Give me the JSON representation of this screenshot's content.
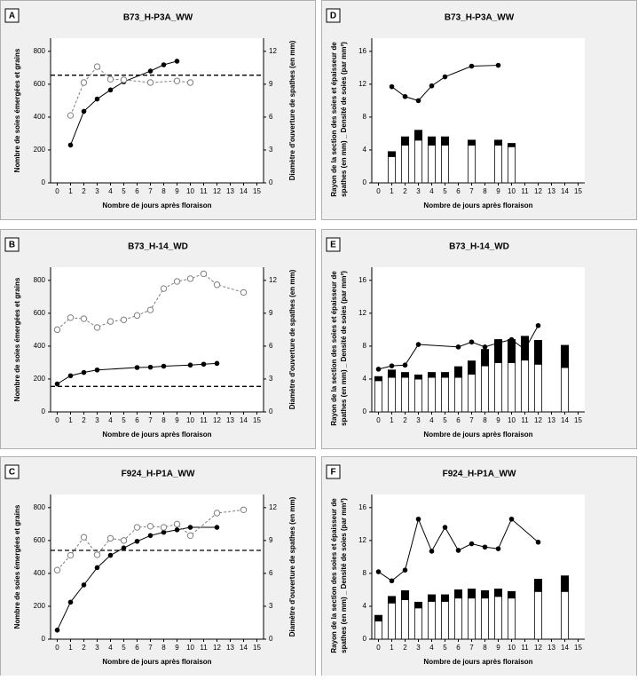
{
  "chart_data": [
    {
      "type": "line",
      "panel": "A",
      "title": "B73_H-P3A_WW",
      "xlabel": "Nombre de jours après floraison",
      "ylabel": "Nombre de soies émergées et grains",
      "y2label": "Diamètre d'ouverture de spathes (en mm)",
      "xlim": [
        -0.5,
        15.5
      ],
      "xticks": [
        0,
        1,
        2,
        3,
        4,
        5,
        6,
        7,
        8,
        9,
        10,
        11,
        12,
        13,
        14,
        15
      ],
      "ylim": [
        0,
        880
      ],
      "yticks": [
        0,
        200,
        400,
        600,
        800
      ],
      "y2lim": [
        0,
        13.2
      ],
      "y2ticks": [
        0,
        3,
        6,
        9,
        12
      ],
      "hline": 655,
      "series": [
        {
          "color": "#000000",
          "style": "solid",
          "marker": "filled",
          "x": [
            1,
            2,
            3,
            4,
            5,
            7,
            8,
            9
          ],
          "values": [
            230,
            435,
            510,
            565,
            615,
            680,
            718,
            740
          ]
        },
        {
          "color": "#808080",
          "style": "dashed",
          "marker": "open",
          "axis": "y2",
          "x": [
            1,
            2,
            3,
            4,
            5,
            7,
            9,
            10
          ],
          "values": [
            6.15,
            9.15,
            10.6,
            9.45,
            9.4,
            9.15,
            9.3,
            9.15
          ]
        }
      ]
    },
    {
      "type": "bar",
      "panel": "D",
      "title": "B73_H-P3A_WW",
      "xlabel": "Nombre de jours après floraison",
      "ylabel": [
        "Rayon de la section des soies et épaisseur de",
        "spathes (en mm) _ Densité de soies (par mm²)"
      ],
      "xlim": [
        -0.5,
        15.5
      ],
      "xticks": [
        0,
        1,
        2,
        3,
        4,
        5,
        6,
        7,
        8,
        9,
        10,
        11,
        12,
        13,
        14,
        15
      ],
      "ylim": [
        0,
        17.6
      ],
      "yticks": [
        0,
        4,
        8,
        12,
        16
      ],
      "series": [
        {
          "type": "bar",
          "color": "#ffffff",
          "x": [
            1,
            2,
            3,
            4,
            5,
            7,
            9,
            10
          ],
          "values": [
            3.2,
            4.6,
            5.2,
            4.6,
            4.6,
            4.6,
            4.6,
            4.4
          ]
        },
        {
          "type": "bar",
          "color": "#000000",
          "x": [
            1,
            2,
            3,
            4,
            5,
            7,
            9,
            10
          ],
          "values": [
            0.6,
            1.0,
            1.2,
            1.0,
            1.0,
            0.6,
            0.6,
            0.4
          ]
        },
        {
          "type": "line",
          "color": "#000000",
          "x": [
            1,
            2,
            3,
            4,
            5,
            7,
            9
          ],
          "values": [
            11.7,
            10.5,
            10.0,
            11.8,
            12.9,
            14.2,
            14.3
          ]
        }
      ]
    },
    {
      "type": "line",
      "panel": "B",
      "title": "B73_H-14_WD",
      "xlabel": "Nombre de jours après floraison",
      "ylabel": "Nombre de soies émergées et grains",
      "y2label": "Diamètre d'ouverture de spathes (en mm)",
      "xlim": [
        -0.5,
        15.5
      ],
      "xticks": [
        0,
        1,
        2,
        3,
        4,
        5,
        6,
        7,
        8,
        9,
        10,
        11,
        12,
        13,
        14,
        15
      ],
      "ylim": [
        0,
        880
      ],
      "yticks": [
        0,
        200,
        400,
        600,
        800
      ],
      "y2lim": [
        0,
        13.2
      ],
      "y2ticks": [
        0,
        3,
        6,
        9,
        12
      ],
      "hline": 155,
      "series": [
        {
          "color": "#000000",
          "style": "solid",
          "marker": "filled",
          "x": [
            0,
            1,
            2,
            3,
            6,
            7,
            8,
            10,
            11,
            12
          ],
          "values": [
            170,
            220,
            240,
            255,
            270,
            272,
            278,
            285,
            290,
            295
          ]
        },
        {
          "color": "#808080",
          "style": "dashed",
          "marker": "open",
          "axis": "y2",
          "x": [
            0,
            1,
            2,
            3,
            4,
            5,
            6,
            7,
            8,
            9,
            10,
            11,
            12,
            14
          ],
          "values": [
            7.5,
            8.6,
            8.5,
            7.7,
            8.25,
            8.4,
            8.8,
            9.3,
            11.25,
            11.9,
            12.15,
            12.6,
            11.6,
            10.9
          ]
        }
      ]
    },
    {
      "type": "bar",
      "panel": "E",
      "title": "B73_H-14_WD",
      "xlabel": "Nombre de jours après floraison",
      "ylabel": [
        "Rayon de la section des soies et épaisseur de",
        "spathes (en mm) _ Densité de soies (par mm²)"
      ],
      "xlim": [
        -0.5,
        15.5
      ],
      "xticks": [
        0,
        1,
        2,
        3,
        4,
        5,
        6,
        7,
        8,
        9,
        10,
        11,
        12,
        13,
        14,
        15
      ],
      "ylim": [
        0,
        17.6
      ],
      "yticks": [
        0,
        4,
        8,
        12,
        16
      ],
      "series": [
        {
          "type": "bar",
          "color": "#ffffff",
          "x": [
            0,
            1,
            2,
            3,
            4,
            5,
            6,
            7,
            8,
            9,
            10,
            11,
            12,
            14
          ],
          "values": [
            3.8,
            4.2,
            4.2,
            4.0,
            4.2,
            4.2,
            4.2,
            4.6,
            5.6,
            6.0,
            6.0,
            6.3,
            5.8,
            5.4
          ]
        },
        {
          "type": "bar",
          "color": "#000000",
          "x": [
            0,
            1,
            2,
            3,
            4,
            5,
            6,
            7,
            8,
            9,
            10,
            11,
            12,
            14
          ],
          "values": [
            0.5,
            0.9,
            0.6,
            0.5,
            0.6,
            0.6,
            1.3,
            1.6,
            2.0,
            2.8,
            2.8,
            2.9,
            2.9,
            2.7
          ]
        },
        {
          "type": "line",
          "color": "#000000",
          "x": [
            0,
            1,
            2,
            3,
            6,
            7,
            8,
            9,
            10,
            11,
            12
          ],
          "values": [
            5.2,
            5.6,
            5.7,
            8.2,
            7.9,
            8.5,
            7.9,
            8.4,
            8.8,
            7.6,
            10.5
          ]
        }
      ]
    },
    {
      "type": "line",
      "panel": "C",
      "title": "F924_H-P1A_WW",
      "xlabel": "Nombre de jours après floraison",
      "ylabel": "Nombre de soies émergées et grains",
      "y2label": "Diamètre d'ouverture de spathes (en mm)",
      "xlim": [
        -0.5,
        15.5
      ],
      "xticks": [
        0,
        1,
        2,
        3,
        4,
        5,
        6,
        7,
        8,
        9,
        10,
        11,
        12,
        13,
        14,
        15
      ],
      "ylim": [
        0,
        880
      ],
      "yticks": [
        0,
        200,
        400,
        600,
        800
      ],
      "y2lim": [
        0,
        13.2
      ],
      "y2ticks": [
        0,
        3,
        6,
        9,
        12
      ],
      "hline": 540,
      "series": [
        {
          "color": "#000000",
          "style": "solid",
          "marker": "filled",
          "x": [
            0,
            1,
            2,
            3,
            4,
            5,
            6,
            7,
            8,
            9,
            10,
            12
          ],
          "values": [
            55,
            225,
            330,
            435,
            510,
            555,
            595,
            630,
            650,
            665,
            680,
            680
          ]
        },
        {
          "color": "#808080",
          "style": "dashed",
          "marker": "open",
          "axis": "y2",
          "x": [
            0,
            1,
            2,
            3,
            4,
            5,
            6,
            7,
            8,
            9,
            10,
            12,
            14
          ],
          "values": [
            6.3,
            7.65,
            9.3,
            7.7,
            9.2,
            9.0,
            10.2,
            10.3,
            10.2,
            10.5,
            9.45,
            11.5,
            11.8
          ]
        }
      ]
    },
    {
      "type": "bar",
      "panel": "F",
      "title": "F924_H-P1A_WW",
      "xlabel": "Nombre de jours après floraison",
      "ylabel": [
        "Rayon de la section des soies et épaisseur de",
        "spathes (en mm) _ Densité de soies (par mm²)"
      ],
      "xlim": [
        -0.5,
        15.5
      ],
      "xticks": [
        0,
        1,
        2,
        3,
        4,
        5,
        6,
        7,
        8,
        9,
        10,
        11,
        12,
        13,
        14,
        15
      ],
      "ylim": [
        0,
        17.6
      ],
      "yticks": [
        0,
        4,
        8,
        12,
        16
      ],
      "series": [
        {
          "type": "bar",
          "color": "#ffffff",
          "x": [
            0,
            1,
            2,
            3,
            4,
            5,
            6,
            7,
            8,
            9,
            10,
            12,
            14
          ],
          "values": [
            2.2,
            4.4,
            4.8,
            3.8,
            4.6,
            4.6,
            5.0,
            5.0,
            5.0,
            5.2,
            5.0,
            5.8,
            5.8
          ]
        },
        {
          "type": "bar",
          "color": "#000000",
          "x": [
            0,
            1,
            2,
            3,
            4,
            5,
            6,
            7,
            8,
            9,
            10,
            12,
            14
          ],
          "values": [
            0.7,
            0.8,
            1.1,
            0.7,
            0.8,
            0.8,
            1.0,
            1.1,
            0.9,
            0.9,
            0.8,
            1.5,
            1.9
          ]
        },
        {
          "type": "line",
          "color": "#000000",
          "x": [
            0,
            1,
            2,
            3,
            4,
            5,
            6,
            7,
            8,
            9,
            10,
            12
          ],
          "values": [
            8.2,
            7.1,
            8.4,
            14.6,
            10.7,
            13.6,
            10.8,
            11.6,
            11.2,
            11.0,
            14.6,
            11.8
          ]
        }
      ]
    }
  ]
}
